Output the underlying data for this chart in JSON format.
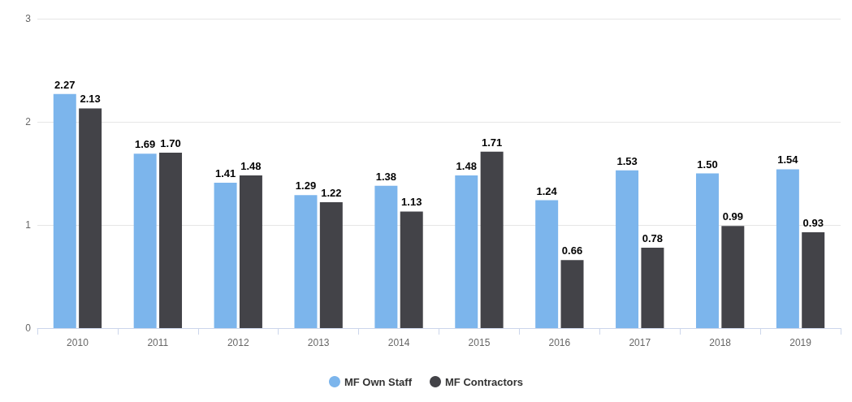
{
  "chart_data": {
    "type": "bar",
    "categories": [
      "2010",
      "2011",
      "2012",
      "2013",
      "2014",
      "2015",
      "2016",
      "2017",
      "2018",
      "2019"
    ],
    "series": [
      {
        "name": "MF Own Staff",
        "color": "#7cb5ec",
        "values": [
          2.27,
          1.69,
          1.41,
          1.29,
          1.38,
          1.48,
          1.24,
          1.53,
          1.5,
          1.54
        ],
        "value_labels": [
          "2.27",
          "1.69",
          "1.41",
          "1.29",
          "1.38",
          "1.48",
          "1.24",
          "1.53",
          "1.50",
          "1.54"
        ]
      },
      {
        "name": "MF Contractors",
        "color": "#434348",
        "values": [
          2.13,
          1.7,
          1.48,
          1.22,
          1.13,
          1.71,
          0.66,
          0.78,
          0.99,
          0.93
        ],
        "value_labels": [
          "2.13",
          "1.70",
          "1.48",
          "1.22",
          "1.13",
          "1.71",
          "0.66",
          "0.78",
          "0.99",
          "0.93"
        ]
      }
    ],
    "ylim": [
      0,
      3
    ],
    "yticks": [
      0,
      1,
      2,
      3
    ],
    "grid": "y",
    "legend": "bottom"
  }
}
